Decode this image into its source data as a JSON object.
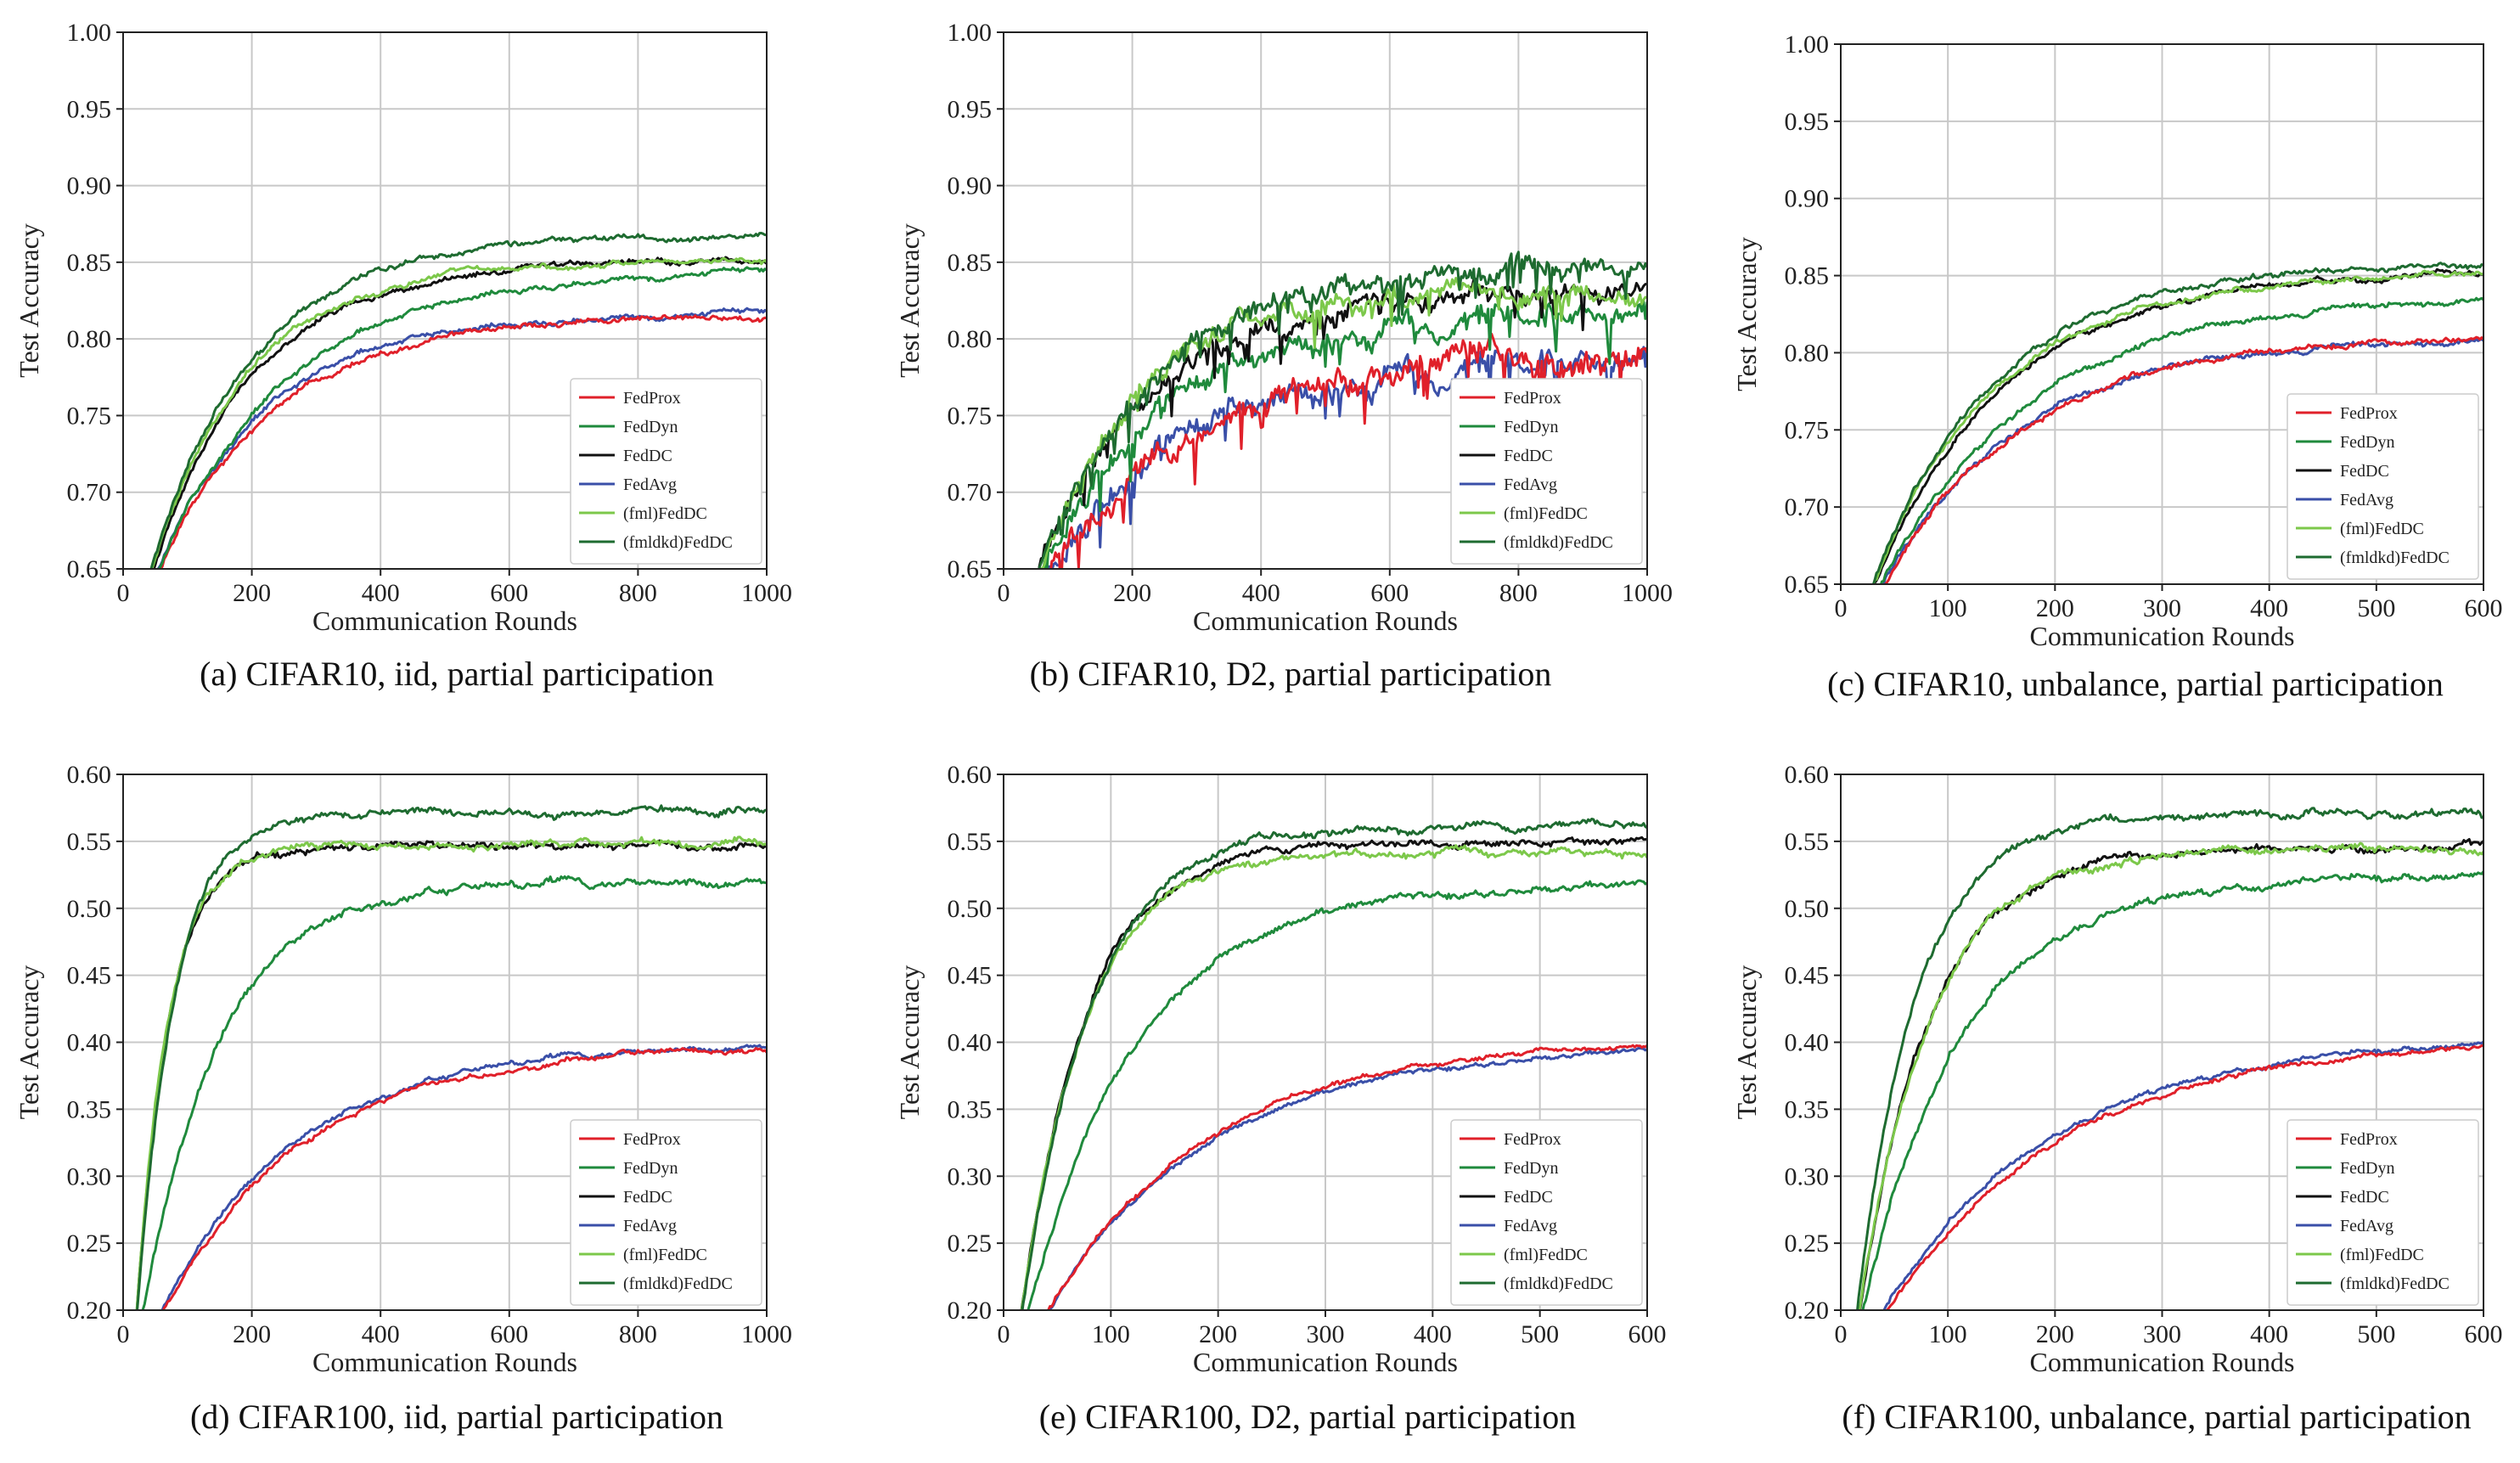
{
  "colors": {
    "FedProx": "#e0202a",
    "FedDyn": "#1f8a3c",
    "FedDC": "#111111",
    "FedAvg": "#3a4fa8",
    "(fml)FedDC": "#7cc84a",
    "(fmldkd)FedDC": "#1e6b30"
  },
  "chart_data": [
    {
      "type": "line",
      "caption": "(a) CIFAR10, iid, partial participation",
      "xlabel": "Communication Rounds",
      "ylabel": "Test Accuracy",
      "xlim": [
        0,
        1000
      ],
      "ylim": [
        0.65,
        1.0
      ],
      "xticks": [
        0,
        200,
        400,
        600,
        800,
        1000
      ],
      "xtick_labels": [
        "0",
        "200",
        "400",
        "600",
        "800",
        "1000"
      ],
      "yticks": [
        0.65,
        0.7,
        0.75,
        0.8,
        0.85,
        0.9,
        0.95,
        1.0
      ],
      "ytick_labels": [
        "0.65",
        "0.70",
        "0.75",
        "0.80",
        "0.85",
        "0.90",
        "0.95",
        "1.00"
      ],
      "grid": true,
      "legend_position": "bottom-right",
      "series": [
        {
          "name": "FedProx",
          "final": 0.815,
          "tau": 0.18,
          "noise": 0.002
        },
        {
          "name": "FedDyn",
          "final": 0.845,
          "tau": 0.2,
          "noise": 0.002
        },
        {
          "name": "FedDC",
          "final": 0.852,
          "tau": 0.16,
          "noise": 0.002
        },
        {
          "name": "FedAvg",
          "final": 0.817,
          "tau": 0.17,
          "noise": 0.002
        },
        {
          "name": "(fml)FedDC",
          "final": 0.851,
          "tau": 0.15,
          "noise": 0.002
        },
        {
          "name": "(fmldkd)FedDC",
          "final": 0.868,
          "tau": 0.16,
          "noise": 0.002
        }
      ]
    },
    {
      "type": "line",
      "caption": "(b) CIFAR10, D2, partial participation",
      "xlabel": "Communication Rounds",
      "ylabel": "Test Accuracy",
      "xlim": [
        0,
        1000
      ],
      "ylim": [
        0.65,
        1.0
      ],
      "xticks": [
        0,
        200,
        400,
        600,
        800,
        1000
      ],
      "xtick_labels": [
        "0",
        "200",
        "400",
        "600",
        "800",
        "1000"
      ],
      "yticks": [
        0.65,
        0.7,
        0.75,
        0.8,
        0.85,
        0.9,
        0.95,
        1.0
      ],
      "ytick_labels": [
        "0.65",
        "0.70",
        "0.75",
        "0.80",
        "0.85",
        "0.90",
        "0.95",
        "1.00"
      ],
      "grid": true,
      "legend_position": "bottom-right",
      "series": [
        {
          "name": "FedProx",
          "final": 0.79,
          "tau": 0.22,
          "noise": 0.009
        },
        {
          "name": "FedDyn",
          "final": 0.82,
          "tau": 0.2,
          "noise": 0.008
        },
        {
          "name": "FedDC",
          "final": 0.83,
          "tau": 0.18,
          "noise": 0.007
        },
        {
          "name": "FedAvg",
          "final": 0.79,
          "tau": 0.22,
          "noise": 0.009
        },
        {
          "name": "(fml)FedDC",
          "final": 0.832,
          "tau": 0.16,
          "noise": 0.007
        },
        {
          "name": "(fmldkd)FedDC",
          "final": 0.846,
          "tau": 0.18,
          "noise": 0.007
        }
      ]
    },
    {
      "type": "line",
      "caption": "(c) CIFAR10, unbalance, partial participation",
      "xlabel": "Communication Rounds",
      "ylabel": "Test Accuracy",
      "xlim": [
        0,
        600
      ],
      "ylim": [
        0.65,
        1.0
      ],
      "xticks": [
        0,
        100,
        200,
        300,
        400,
        500,
        600
      ],
      "xtick_labels": [
        "0",
        "100",
        "200",
        "300",
        "400",
        "500",
        "600"
      ],
      "yticks": [
        0.65,
        0.7,
        0.75,
        0.8,
        0.85,
        0.9,
        0.95,
        1.0
      ],
      "ytick_labels": [
        "0.65",
        "0.70",
        "0.75",
        "0.80",
        "0.85",
        "0.90",
        "0.95",
        "1.00"
      ],
      "grid": true,
      "legend_position": "bottom-right",
      "series": [
        {
          "name": "FedProx",
          "final": 0.811,
          "tau": 0.22,
          "noise": 0.002
        },
        {
          "name": "FedDyn",
          "final": 0.84,
          "tau": 0.24,
          "noise": 0.002
        },
        {
          "name": "FedDC",
          "final": 0.852,
          "tau": 0.2,
          "noise": 0.002
        },
        {
          "name": "FedAvg",
          "final": 0.812,
          "tau": 0.22,
          "noise": 0.002
        },
        {
          "name": "(fml)FedDC",
          "final": 0.851,
          "tau": 0.19,
          "noise": 0.002
        },
        {
          "name": "(fmldkd)FedDC",
          "final": 0.858,
          "tau": 0.19,
          "noise": 0.002
        }
      ]
    },
    {
      "type": "line",
      "caption": "(d) CIFAR100, iid, partial participation",
      "xlabel": "Communication Rounds",
      "ylabel": "Test Accuracy",
      "xlim": [
        0,
        1000
      ],
      "ylim": [
        0.2,
        0.6
      ],
      "xticks": [
        0,
        200,
        400,
        600,
        800,
        1000
      ],
      "xtick_labels": [
        "0",
        "200",
        "400",
        "600",
        "800",
        "1000"
      ],
      "yticks": [
        0.2,
        0.25,
        0.3,
        0.35,
        0.4,
        0.45,
        0.5,
        0.55,
        0.6
      ],
      "ytick_labels": [
        "0.20",
        "0.25",
        "0.30",
        "0.35",
        "0.40",
        "0.45",
        "0.50",
        "0.55",
        "0.60"
      ],
      "grid": true,
      "legend_position": "bottom-right",
      "series": [
        {
          "name": "FedProx",
          "final": 0.398,
          "tau": 0.22,
          "noise": 0.002
        },
        {
          "name": "FedDyn",
          "final": 0.52,
          "tau": 0.12,
          "noise": 0.003
        },
        {
          "name": "FedDC",
          "final": 0.546,
          "tau": 0.05,
          "noise": 0.003
        },
        {
          "name": "FedAvg",
          "final": 0.399,
          "tau": 0.21,
          "noise": 0.002
        },
        {
          "name": "(fml)FedDC",
          "final": 0.548,
          "tau": 0.05,
          "noise": 0.003
        },
        {
          "name": "(fmldkd)FedDC",
          "final": 0.573,
          "tau": 0.06,
          "noise": 0.003
        }
      ]
    },
    {
      "type": "line",
      "caption": "(e) CIFAR100, D2, partial participation",
      "xlabel": "Communication Rounds",
      "ylabel": "Test Accuracy",
      "xlim": [
        0,
        600
      ],
      "ylim": [
        0.2,
        0.6
      ],
      "xticks": [
        0,
        100,
        200,
        300,
        400,
        500,
        600
      ],
      "xtick_labels": [
        "0",
        "100",
        "200",
        "300",
        "400",
        "500",
        "600"
      ],
      "yticks": [
        0.2,
        0.25,
        0.3,
        0.35,
        0.4,
        0.45,
        0.5,
        0.55,
        0.6
      ],
      "ytick_labels": [
        "0.20",
        "0.25",
        "0.30",
        "0.35",
        "0.40",
        "0.45",
        "0.50",
        "0.55",
        "0.60"
      ],
      "grid": true,
      "legend_position": "bottom-right",
      "series": [
        {
          "name": "FedProx",
          "final": 0.402,
          "tau": 0.25,
          "noise": 0.002
        },
        {
          "name": "FedDyn",
          "final": 0.518,
          "tau": 0.17,
          "noise": 0.003
        },
        {
          "name": "FedDC",
          "final": 0.548,
          "tau": 0.1,
          "noise": 0.003
        },
        {
          "name": "FedAvg",
          "final": 0.398,
          "tau": 0.25,
          "noise": 0.002
        },
        {
          "name": "(fml)FedDC",
          "final": 0.542,
          "tau": 0.1,
          "noise": 0.003
        },
        {
          "name": "(fmldkd)FedDC",
          "final": 0.562,
          "tau": 0.11,
          "noise": 0.003
        }
      ]
    },
    {
      "type": "line",
      "caption": "(f) CIFAR100, unbalance, partial participation",
      "xlabel": "Communication Rounds",
      "ylabel": "Test Accuracy",
      "xlim": [
        0,
        600
      ],
      "ylim": [
        0.2,
        0.6
      ],
      "xticks": [
        0,
        100,
        200,
        300,
        400,
        500,
        600
      ],
      "xtick_labels": [
        "0",
        "100",
        "200",
        "300",
        "400",
        "500",
        "600"
      ],
      "yticks": [
        0.2,
        0.25,
        0.3,
        0.35,
        0.4,
        0.45,
        0.5,
        0.55,
        0.6
      ],
      "ytick_labels": [
        "0.20",
        "0.25",
        "0.30",
        "0.35",
        "0.40",
        "0.45",
        "0.50",
        "0.55",
        "0.60"
      ],
      "grid": true,
      "legend_position": "bottom-right",
      "series": [
        {
          "name": "FedProx",
          "final": 0.402,
          "tau": 0.27,
          "noise": 0.002
        },
        {
          "name": "FedDyn",
          "final": 0.523,
          "tau": 0.15,
          "noise": 0.003
        },
        {
          "name": "FedDC",
          "final": 0.545,
          "tau": 0.11,
          "noise": 0.003
        },
        {
          "name": "FedAvg",
          "final": 0.402,
          "tau": 0.25,
          "noise": 0.002
        },
        {
          "name": "(fml)FedDC",
          "final": 0.545,
          "tau": 0.11,
          "noise": 0.003
        },
        {
          "name": "(fmldkd)FedDC",
          "final": 0.57,
          "tau": 0.09,
          "noise": 0.003
        }
      ]
    }
  ]
}
